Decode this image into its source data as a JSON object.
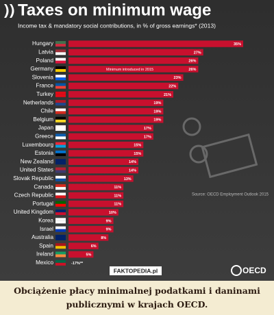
{
  "chart_data": {
    "type": "bar",
    "orientation": "horizontal",
    "title": "Taxes on minimum wage",
    "subtitle": "Income tax & mandatory social contributions, in % of gross earnings* (2013)",
    "categories": [
      "Hungary",
      "Latvia",
      "Poland",
      "Germany",
      "Slovenia",
      "France",
      "Turkey",
      "Netherlands",
      "Chile",
      "Belgium",
      "Japan",
      "Greece",
      "Luxembourg",
      "Estonia",
      "New Zealand",
      "United States",
      "Slovak Republic",
      "Canada",
      "Czech Republic",
      "Portugal",
      "United Kingdom",
      "Korea",
      "Israel",
      "Australia",
      "Spain",
      "Ireland",
      "Mexico"
    ],
    "values": [
      35,
      27,
      26,
      26,
      23,
      22,
      21,
      19,
      19,
      19,
      17,
      17,
      15,
      15,
      14,
      14,
      13,
      11,
      11,
      11,
      10,
      9,
      9,
      8,
      6,
      5,
      -17
    ],
    "value_labels": [
      "35%",
      "27%",
      "26%",
      "26%",
      "23%",
      "22%",
      "21%",
      "19%",
      "19%",
      "19%",
      "17%",
      "17%",
      "15%",
      "15%",
      "14%",
      "14%",
      "13%",
      "11%",
      "11%",
      "11%",
      "10%",
      "9%",
      "9%",
      "8%",
      "6%",
      "5%",
      "-17%**"
    ],
    "color": "#c8102e",
    "xlim": [
      0,
      35
    ],
    "annotation": "Minimum introduced in 2015",
    "source": "Source: OECD Employment Outlook 2015",
    "logo": "OECD",
    "watermark": "FAKTOPEDIA.pl"
  },
  "caption": "Obciążenie płacy minimalnej podatkami i daninami publicznymi w krajach OECD."
}
